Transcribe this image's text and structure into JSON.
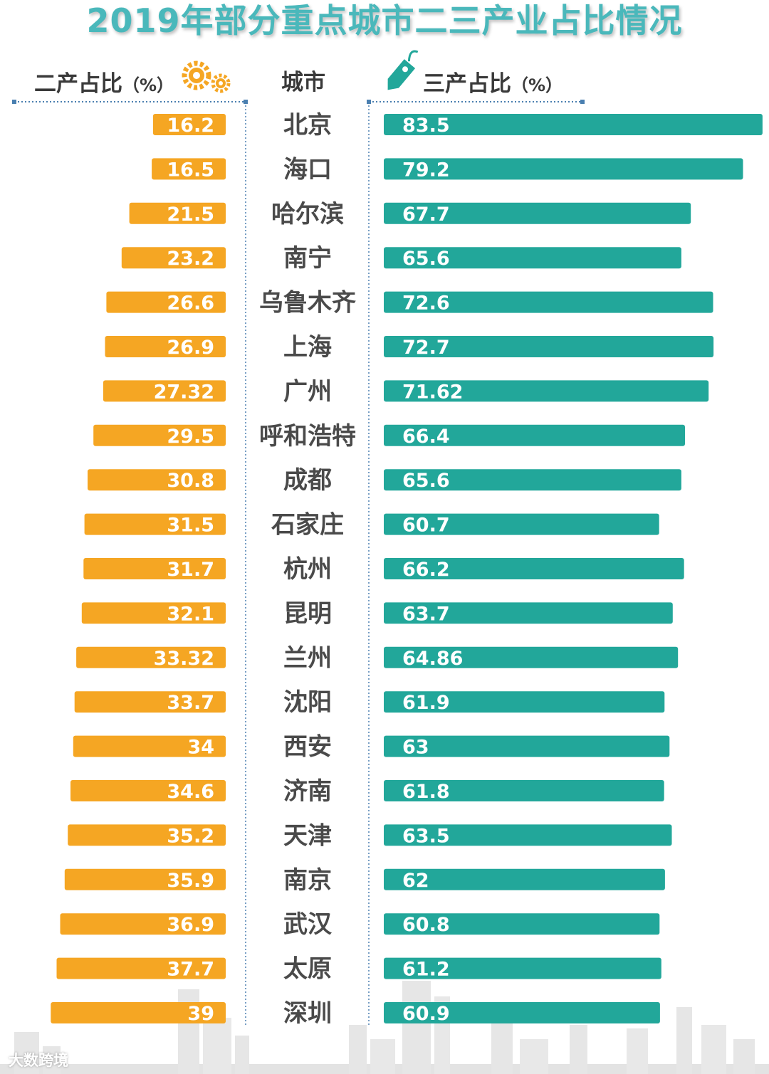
{
  "title": "2019年部分重点城市二三产业占比情况",
  "headers": {
    "left": "二产占比",
    "middle": "城市",
    "right": "三产占比",
    "unit": "（%）"
  },
  "icons": {
    "left": "gears-icon",
    "right": "price-tag-icon"
  },
  "colors": {
    "secondary_bar": "#f5a623",
    "tertiary_bar": "#22a79a",
    "title": "#4ab8bb",
    "skyline": "#e3e3e3"
  },
  "watermark": "大数跨境",
  "chart_data": {
    "type": "bar",
    "title": "2019年部分重点城市二三产业占比情况",
    "categories": [
      "北京",
      "海口",
      "哈尔滨",
      "南宁",
      "乌鲁木齐",
      "上海",
      "广州",
      "呼和浩特",
      "成都",
      "石家庄",
      "杭州",
      "昆明",
      "兰州",
      "沈阳",
      "西安",
      "济南",
      "天津",
      "南京",
      "武汉",
      "太原",
      "深圳"
    ],
    "series": [
      {
        "name": "二产占比（%）",
        "values": [
          16.2,
          16.5,
          21.5,
          23.2,
          26.6,
          26.9,
          27.32,
          29.5,
          30.8,
          31.5,
          31.7,
          32.1,
          33.32,
          33.7,
          34,
          34.6,
          35.2,
          35.9,
          36.9,
          37.7,
          39
        ],
        "labels": [
          "16.2",
          "16.5",
          "21.5",
          "23.2",
          "26.6",
          "26.9",
          "27.32",
          "29.5",
          "30.8",
          "31.5",
          "31.7",
          "32.1",
          "33.32",
          "33.7",
          "34",
          "34.6",
          "35.2",
          "35.9",
          "36.9",
          "37.7",
          "39"
        ]
      },
      {
        "name": "三产占比（%）",
        "values": [
          83.5,
          79.2,
          67.7,
          65.6,
          72.6,
          72.7,
          71.62,
          66.4,
          65.6,
          60.7,
          66.2,
          63.7,
          64.86,
          61.9,
          63,
          61.8,
          63.5,
          62,
          60.8,
          61.2,
          60.9
        ],
        "labels": [
          "83.5",
          "79.2",
          "67.7",
          "65.6",
          "72.6",
          "72.7",
          "71.62",
          "66.4",
          "65.6",
          "60.7",
          "66.2",
          "63.7",
          "64.86",
          "61.9",
          "63",
          "61.8",
          "63.5",
          "62",
          "60.8",
          "61.2",
          "60.9"
        ]
      }
    ],
    "xlabel": "",
    "ylabel": "",
    "legend": "none",
    "grid": false
  }
}
